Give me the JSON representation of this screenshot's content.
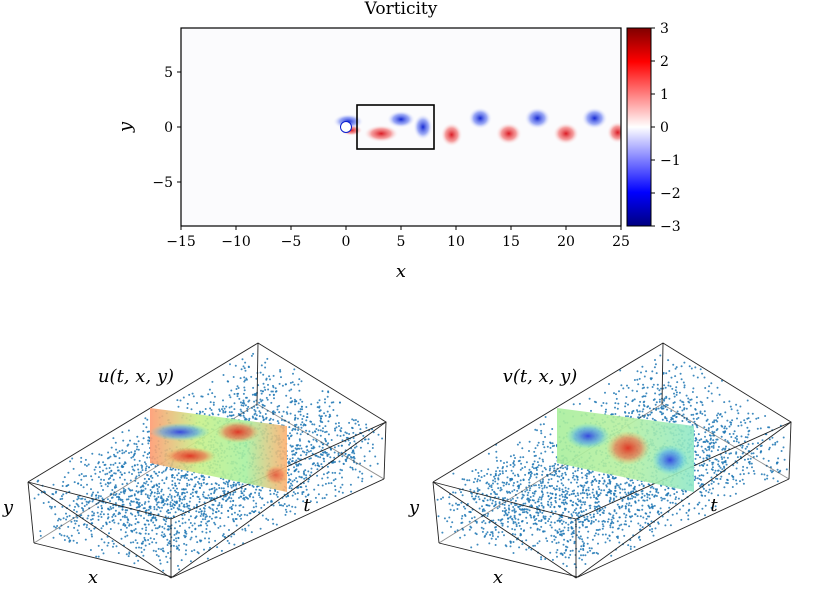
{
  "top_panel": {
    "title": "Vorticity",
    "xlabel": "x",
    "ylabel": "y",
    "colorbar_ticks": [
      "3",
      "2",
      "1",
      "0",
      "−1",
      "−2",
      "−3"
    ],
    "colorbar_range": [
      -3,
      3
    ],
    "colors": {
      "positive": "#e0141a",
      "negative": "#0a1ecf",
      "neutral": "#ffffff"
    }
  },
  "bottom_panels": [
    {
      "title": "u(t, x, y)",
      "xlabel": "x",
      "ylabel": "y",
      "tlabel": "t"
    },
    {
      "title": "v(t, x, y)",
      "xlabel": "x",
      "ylabel": "y",
      "tlabel": "t"
    }
  ],
  "chart_data": [
    {
      "type": "heatmap",
      "title": "Vorticity",
      "xlabel": "x",
      "ylabel": "y",
      "xlim": [
        -15,
        25
      ],
      "ylim": [
        -9,
        9
      ],
      "x_ticks": [
        -15,
        -10,
        -5,
        0,
        5,
        10,
        15,
        20,
        25
      ],
      "x_tick_labels": [
        "−15",
        "−10",
        "−5",
        "0",
        "5",
        "10",
        "15",
        "20",
        "25"
      ],
      "y_ticks": [
        5,
        0,
        -5
      ],
      "y_tick_labels": [
        "5",
        "0",
        "−5"
      ],
      "colorbar": {
        "min": -3,
        "max": 3,
        "colormap": "seismic"
      },
      "cylinder": {
        "x": 0,
        "y": 0,
        "radius": 0.5
      },
      "training_box": {
        "x0": 1,
        "x1": 8,
        "y0": -2,
        "y1": 2
      },
      "vortices": [
        {
          "x": 0.2,
          "y": 0.5,
          "sign": -1,
          "rx": 1.4,
          "ry": 0.7
        },
        {
          "x": 0.5,
          "y": -0.3,
          "sign": 1,
          "rx": 1.0,
          "ry": 0.5
        },
        {
          "x": 3.2,
          "y": -0.6,
          "sign": 1,
          "rx": 1.6,
          "ry": 0.8
        },
        {
          "x": 5.0,
          "y": 0.7,
          "sign": -1,
          "rx": 1.3,
          "ry": 0.8
        },
        {
          "x": 7.0,
          "y": 0.0,
          "sign": -1,
          "rx": 0.9,
          "ry": 1.2
        },
        {
          "x": 9.6,
          "y": -0.7,
          "sign": 1,
          "rx": 1.0,
          "ry": 1.1
        },
        {
          "x": 12.2,
          "y": 0.8,
          "sign": -1,
          "rx": 1.1,
          "ry": 1.0
        },
        {
          "x": 14.8,
          "y": -0.6,
          "sign": 1,
          "rx": 1.2,
          "ry": 1.0
        },
        {
          "x": 17.4,
          "y": 0.8,
          "sign": -1,
          "rx": 1.2,
          "ry": 1.0
        },
        {
          "x": 20.0,
          "y": -0.6,
          "sign": 1,
          "rx": 1.2,
          "ry": 1.0
        },
        {
          "x": 22.6,
          "y": 0.8,
          "sign": -1,
          "rx": 1.2,
          "ry": 1.0
        },
        {
          "x": 24.7,
          "y": -0.5,
          "sign": 1,
          "rx": 1.0,
          "ry": 1.0
        }
      ]
    },
    {
      "type": "scatter",
      "title": "u(t, x, y)",
      "dimensions": [
        "t",
        "x",
        "y"
      ],
      "scatter_color": "#1f77b4",
      "slice": "rainbow colormap training slice"
    },
    {
      "type": "scatter",
      "title": "v(t, x, y)",
      "dimensions": [
        "t",
        "x",
        "y"
      ],
      "scatter_color": "#1f77b4",
      "slice": "rainbow colormap training slice"
    }
  ]
}
